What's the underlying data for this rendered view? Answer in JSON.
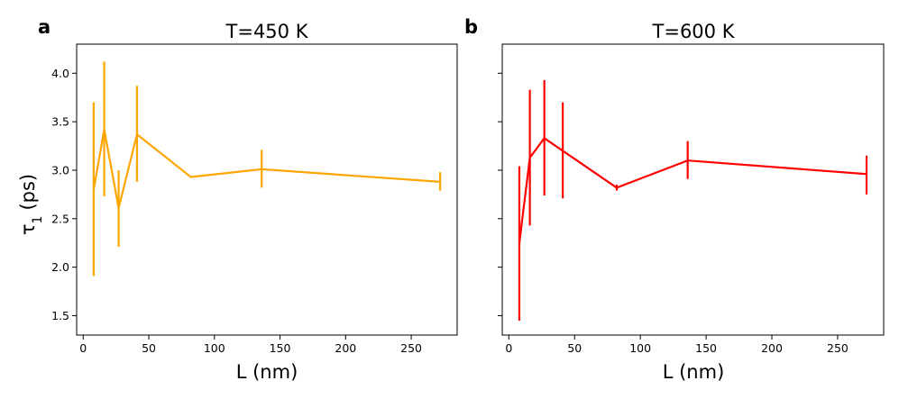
{
  "chart_data": [
    {
      "type": "line",
      "panel_label": "a",
      "title": "T=450 K",
      "xlabel": "L (nm)",
      "ylabel": "τ",
      "ylabel_sub": "1",
      "ylabel_suffix": "(ps)",
      "color": "#ffa500",
      "xlim": [
        -5,
        285
      ],
      "ylim": [
        1.3,
        4.3
      ],
      "xticks": [
        0,
        50,
        100,
        150,
        200,
        250
      ],
      "xtick_labels": [
        "0",
        "50",
        "100",
        "150",
        "200",
        "250"
      ],
      "yticks": [
        1.5,
        2.0,
        2.5,
        3.0,
        3.5,
        4.0
      ],
      "ytick_labels": [
        "1.5",
        "2.0",
        "2.5",
        "3.0",
        "3.5",
        "4.0"
      ],
      "x": [
        8,
        16,
        27,
        41,
        82,
        136,
        272
      ],
      "y": [
        2.8,
        3.42,
        2.61,
        3.37,
        2.93,
        3.01,
        2.88
      ],
      "yerr_low": [
        1.91,
        2.73,
        2.21,
        2.88,
        2.92,
        2.82,
        2.79
      ],
      "yerr_high": [
        3.7,
        4.12,
        3.0,
        3.87,
        2.94,
        3.21,
        2.98
      ]
    },
    {
      "type": "line",
      "panel_label": "b",
      "title": "T=600 K",
      "xlabel": "L (nm)",
      "color": "#ff0000",
      "xlim": [
        -5,
        285
      ],
      "ylim": [
        1.3,
        4.3
      ],
      "xticks": [
        0,
        50,
        100,
        150,
        200,
        250
      ],
      "xtick_labels": [
        "0",
        "50",
        "100",
        "150",
        "200",
        "250"
      ],
      "yticks": [
        1.5,
        2.0,
        2.5,
        3.0,
        3.5,
        4.0
      ],
      "x": [
        8,
        16,
        27,
        41,
        82,
        136,
        272
      ],
      "y": [
        2.25,
        3.13,
        3.33,
        3.2,
        2.82,
        3.1,
        2.96
      ],
      "yerr_low": [
        1.45,
        2.43,
        2.74,
        2.71,
        2.79,
        2.91,
        2.75
      ],
      "yerr_high": [
        3.04,
        3.83,
        3.93,
        3.7,
        2.85,
        3.3,
        3.15
      ]
    }
  ]
}
